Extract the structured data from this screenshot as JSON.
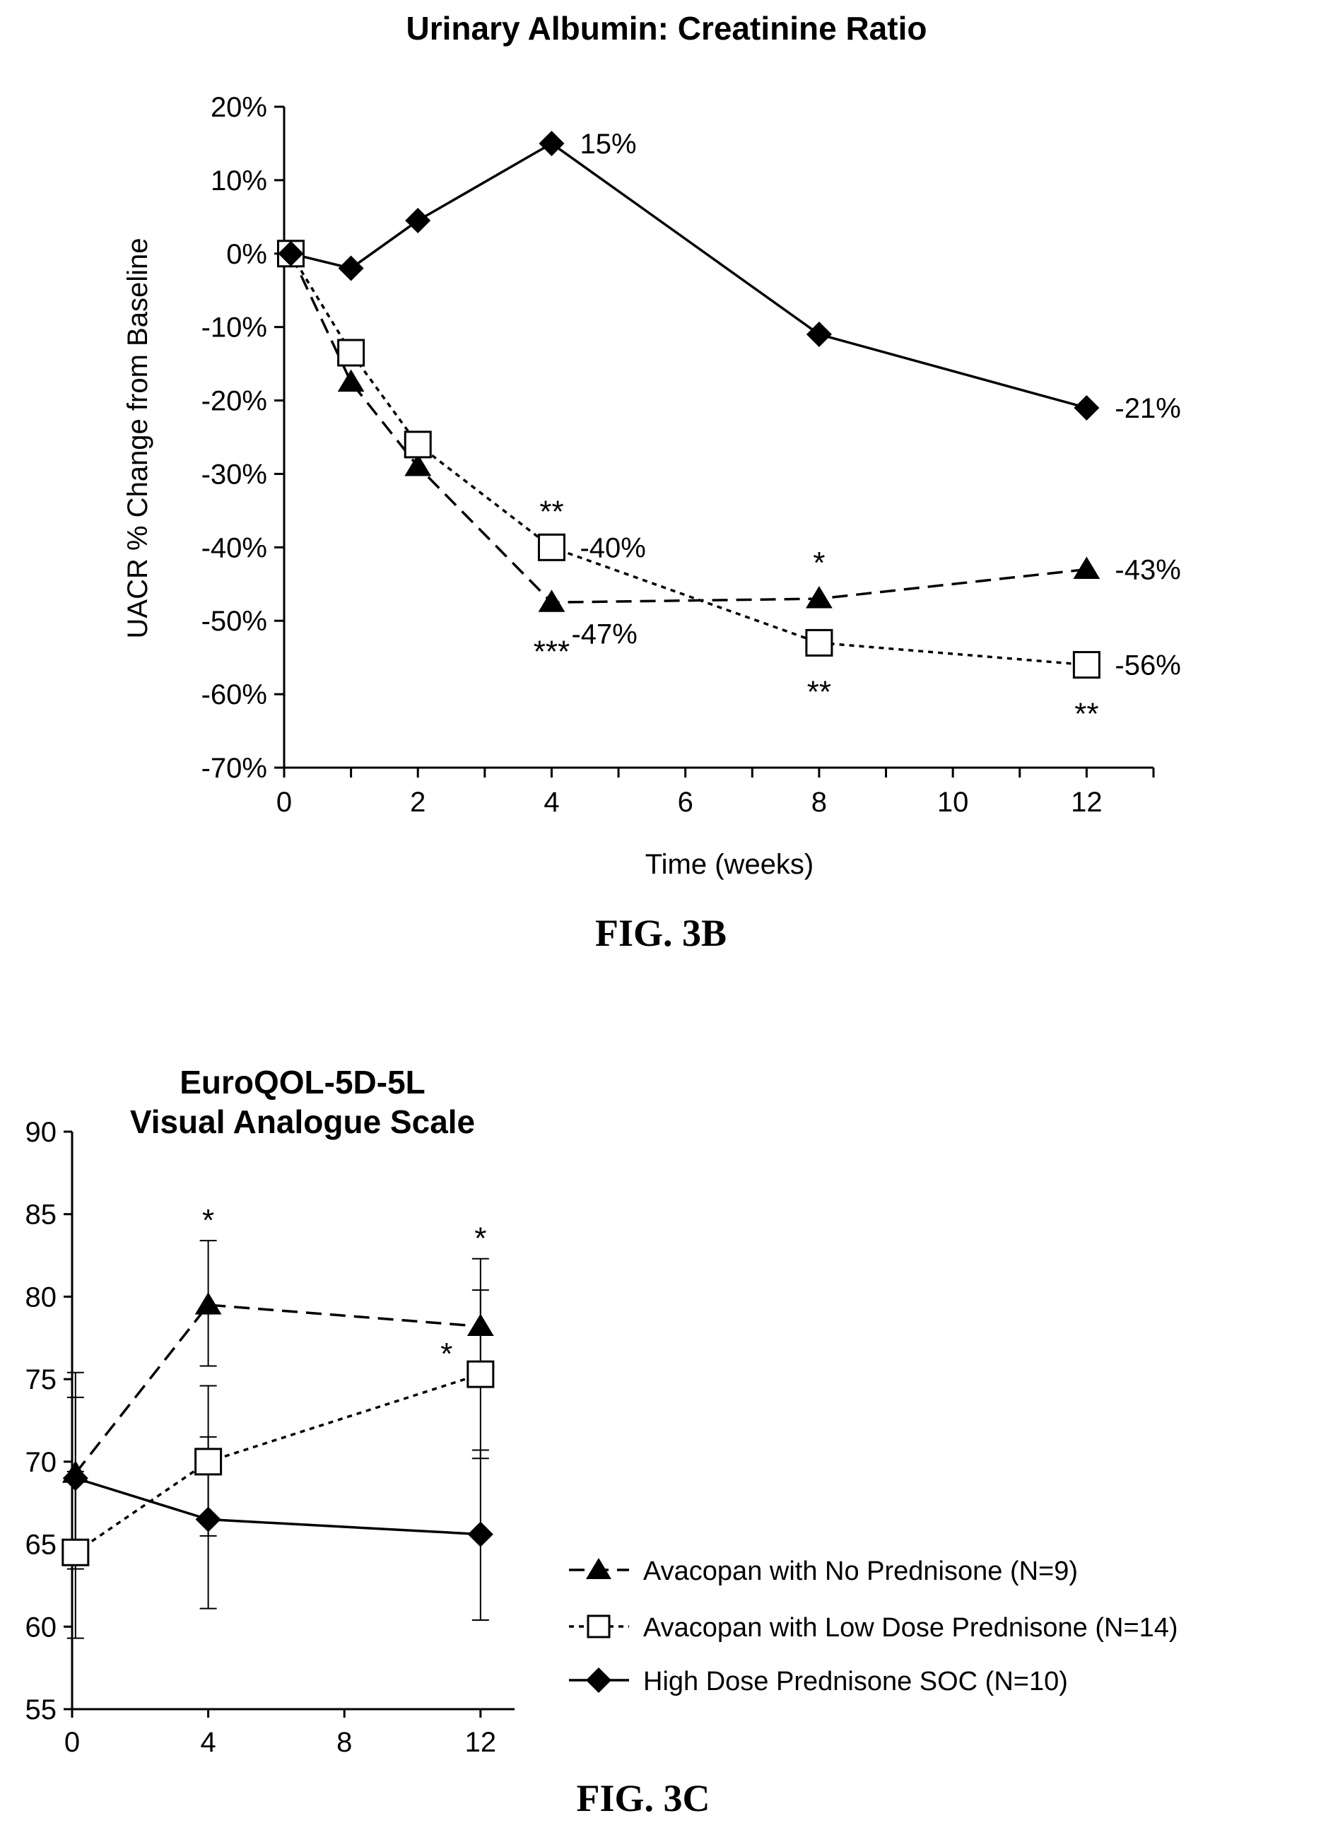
{
  "figure_b": {
    "caption": "FIG. 3B",
    "chart_data": {
      "type": "line",
      "title": "Urinary Albumin: Creatinine Ratio",
      "xlabel": "Time (weeks)",
      "ylabel": "UACR % Change from Baseline",
      "xlim": [
        0,
        13
      ],
      "ylim": [
        -70,
        20
      ],
      "x_ticks": [
        0,
        2,
        4,
        6,
        8,
        10,
        12
      ],
      "y_ticks": [
        20,
        10,
        0,
        -10,
        -20,
        -30,
        -40,
        -50,
        -60,
        -70
      ],
      "y_tick_labels": [
        "20%",
        "10%",
        "0%",
        "-10%",
        "-20%",
        "-30%",
        "-40%",
        "-50%",
        "-60%",
        "-70%"
      ],
      "series": [
        {
          "key": "no_pred",
          "marker": "triangle",
          "line": "dashed",
          "x": [
            0.1,
            1,
            2,
            4,
            8,
            12
          ],
          "y": [
            0,
            -17.5,
            -29,
            -47.5,
            -47,
            -43
          ]
        },
        {
          "key": "low_pred",
          "marker": "square",
          "line": "dotted",
          "x": [
            0.1,
            1,
            2,
            4,
            8,
            12
          ],
          "y": [
            0,
            -13.5,
            -26,
            -40,
            -53,
            -56
          ]
        },
        {
          "key": "high_pred",
          "marker": "diamond",
          "line": "solid",
          "x": [
            0.1,
            1,
            2,
            4,
            8,
            12
          ],
          "y": [
            0,
            -2,
            4.5,
            15,
            -11,
            -21
          ]
        }
      ],
      "value_labels": [
        {
          "text": "15%",
          "x": 4,
          "y": 15,
          "pos": "right"
        },
        {
          "text": "-21%",
          "x": 12,
          "y": -21,
          "pos": "right"
        },
        {
          "text": "-40%",
          "x": 4,
          "y": -40,
          "pos": "right"
        },
        {
          "text": "-47%",
          "x": 4,
          "y": -47.5,
          "pos": "below-right"
        },
        {
          "text": "-43%",
          "x": 12,
          "y": -43,
          "pos": "right"
        },
        {
          "text": "-56%",
          "x": 12,
          "y": -56,
          "pos": "right"
        }
      ],
      "significance": [
        {
          "text": "**",
          "x": 4,
          "y": -40,
          "pos": "above"
        },
        {
          "text": "***",
          "x": 4,
          "y": -47.5,
          "pos": "below"
        },
        {
          "text": "*",
          "x": 8,
          "y": -47,
          "pos": "above"
        },
        {
          "text": "**",
          "x": 8,
          "y": -53,
          "pos": "below"
        },
        {
          "text": "**",
          "x": 12,
          "y": -56,
          "pos": "below"
        }
      ]
    }
  },
  "figure_c": {
    "caption": "FIG. 3C",
    "chart_data": {
      "type": "line",
      "title": [
        "EuroQOL-5D-5L",
        "Visual Analogue Scale"
      ],
      "xlabel": "",
      "ylabel": "",
      "xlim": [
        0,
        13
      ],
      "ylim": [
        55,
        90
      ],
      "x_ticks": [
        0,
        4,
        8,
        12
      ],
      "y_ticks": [
        55,
        60,
        65,
        70,
        75,
        80,
        85,
        90
      ],
      "series": [
        {
          "key": "no_pred",
          "marker": "triangle",
          "line": "dashed",
          "x": [
            0.1,
            4,
            12
          ],
          "y": [
            69.3,
            79.5,
            78.2
          ],
          "err": [
            [
              63.5,
              75.4
            ],
            [
              75.8,
              83.4
            ],
            [
              74.8,
              82.3
            ]
          ]
        },
        {
          "key": "low_pred",
          "marker": "square",
          "line": "dotted",
          "x": [
            0.1,
            4,
            12
          ],
          "y": [
            64.5,
            70,
            75.3
          ],
          "err": [
            [
              59.3,
              69.4
            ],
            [
              65.5,
              74.6
            ],
            [
              70.2,
              80.4
            ]
          ]
        },
        {
          "key": "high_pred",
          "marker": "diamond",
          "line": "solid",
          "x": [
            0.1,
            4,
            12
          ],
          "y": [
            69,
            66.5,
            65.6
          ],
          "err": [
            [
              64,
              73.9
            ],
            [
              61.1,
              71.5
            ],
            [
              60.4,
              70.7
            ]
          ]
        }
      ],
      "significance": [
        {
          "text": "*",
          "x": 4,
          "y": 83.4,
          "pos": "above"
        },
        {
          "text": "*",
          "x": 12,
          "y": 82.3,
          "pos": "above"
        },
        {
          "text": "*",
          "x": 12,
          "y": 75.3,
          "pos": "left-above"
        }
      ]
    }
  },
  "legend": {
    "items": [
      {
        "key": "no_pred",
        "label": "Avacopan with No Prednisone (N=9)"
      },
      {
        "key": "low_pred",
        "label": "Avacopan with Low Dose Prednisone (N=14)"
      },
      {
        "key": "high_pred",
        "label": "High Dose Prednisone SOC (N=10)"
      }
    ]
  }
}
